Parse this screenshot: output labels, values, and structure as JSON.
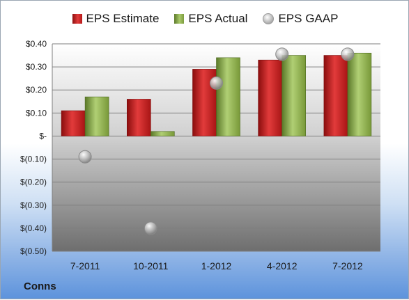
{
  "footer": {
    "company": "Conns"
  },
  "chart_data": {
    "type": "bar",
    "categories": [
      "7-2011",
      "10-2011",
      "1-2012",
      "4-2012",
      "7-2012"
    ],
    "series": [
      {
        "name": "EPS Estimate",
        "kind": "bar",
        "color": "#c0202a",
        "values": [
          0.11,
          0.16,
          0.29,
          0.33,
          0.35
        ]
      },
      {
        "name": "EPS Actual",
        "kind": "bar",
        "color": "#9bbb59",
        "values": [
          0.17,
          0.02,
          0.34,
          0.35,
          0.36
        ]
      },
      {
        "name": "EPS GAAP",
        "kind": "scatter",
        "color": "#a6a6a6",
        "values": [
          -0.09,
          -0.4,
          0.23,
          0.355,
          0.355
        ]
      }
    ],
    "yticks": [
      "$0.40",
      "$0.30",
      "$0.20",
      "$0.10",
      "$-",
      "$(0.10)",
      "$(0.20)",
      "$(0.30)",
      "$(0.40)",
      "$(0.50)"
    ],
    "ylim": [
      -0.5,
      0.4
    ],
    "grid": true,
    "legend_position": "top"
  }
}
